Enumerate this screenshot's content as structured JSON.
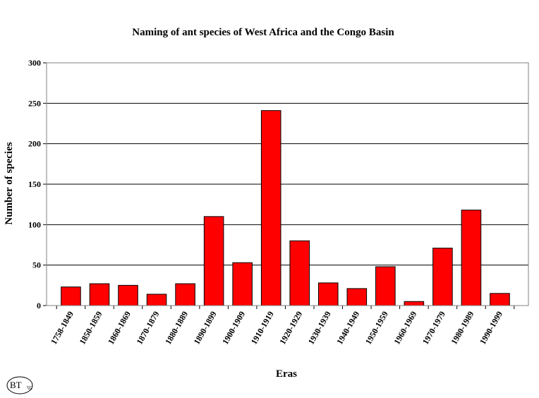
{
  "chart_data": {
    "type": "bar",
    "title": "Naming of ant species of West Africa and the Congo Basin",
    "xlabel": "Eras",
    "ylabel": "Number of species",
    "categories": [
      "1758-1849",
      "1850-1859",
      "1860-1869",
      "1870-1879",
      "1880-1889",
      "1890-1899",
      "1900-1909",
      "1910-1919",
      "1920-1929",
      "1930-1939",
      "1940-1949",
      "1950-1959",
      "1960-1969",
      "1970-1979",
      "1980-1989",
      "1990-1999"
    ],
    "values": [
      23,
      27,
      25,
      14,
      27,
      110,
      53,
      241,
      80,
      28,
      21,
      48,
      5,
      71,
      118,
      15
    ],
    "ylim": [
      0,
      300
    ],
    "yticks": [
      0,
      50,
      100,
      150,
      200,
      250,
      300
    ],
    "grid": true,
    "bar_color": "#ff0000",
    "legend": "none"
  },
  "logo": {
    "text": "BT",
    "year": "'02"
  }
}
